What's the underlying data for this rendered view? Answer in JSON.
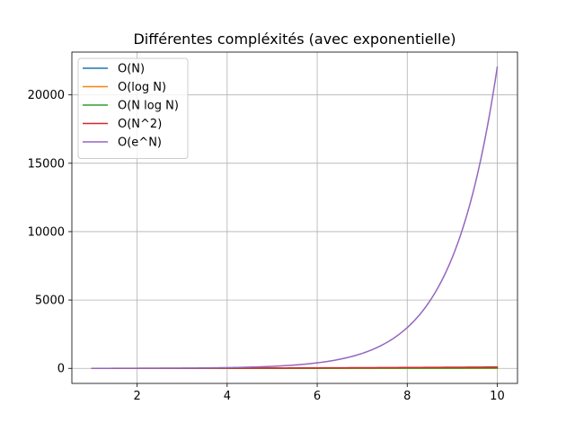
{
  "chart_data": {
    "type": "line",
    "title": "Différentes compléxités (avec exponentielle)",
    "xlabel": "",
    "ylabel": "",
    "grid": true,
    "legend_position": "top-left",
    "xlim": [
      0.55,
      10.45
    ],
    "ylim": [
      -1100,
      23130
    ],
    "xticks": [
      2,
      4,
      6,
      8,
      10
    ],
    "xtick_labels": [
      "2",
      "4",
      "6",
      "8",
      "10"
    ],
    "yticks": [
      0,
      5000,
      10000,
      15000,
      20000
    ],
    "ytick_labels": [
      "0",
      "5000",
      "10000",
      "15000",
      "20000"
    ],
    "x_range": [
      1,
      10
    ],
    "series": [
      {
        "name": "O(N)",
        "color": "#1f77b4",
        "function": "n",
        "sample": {
          "x": [
            1,
            2,
            4,
            6,
            8,
            10
          ],
          "y": [
            1,
            2,
            4,
            6,
            8,
            10
          ]
        }
      },
      {
        "name": "O(log N)",
        "color": "#ff7f0e",
        "function": "log",
        "sample": {
          "x": [
            1,
            2,
            4,
            6,
            8,
            10
          ],
          "y": [
            0,
            0.69,
            1.39,
            1.79,
            2.08,
            2.3
          ]
        }
      },
      {
        "name": "O(N log N)",
        "color": "#2ca02c",
        "function": "nlogn",
        "sample": {
          "x": [
            1,
            2,
            4,
            6,
            8,
            10
          ],
          "y": [
            0,
            1.39,
            5.55,
            10.75,
            16.64,
            23.03
          ]
        }
      },
      {
        "name": "O(N^2)",
        "color": "#d62728",
        "function": "n2",
        "sample": {
          "x": [
            1,
            2,
            4,
            6,
            8,
            10
          ],
          "y": [
            1,
            4,
            16,
            36,
            64,
            100
          ]
        }
      },
      {
        "name": "O(e^N)",
        "color": "#9467bd",
        "function": "exp",
        "sample": {
          "x": [
            1,
            2,
            4,
            6,
            8,
            10
          ],
          "y": [
            2.72,
            7.39,
            54.6,
            403.4,
            2981,
            22026
          ]
        }
      }
    ]
  }
}
